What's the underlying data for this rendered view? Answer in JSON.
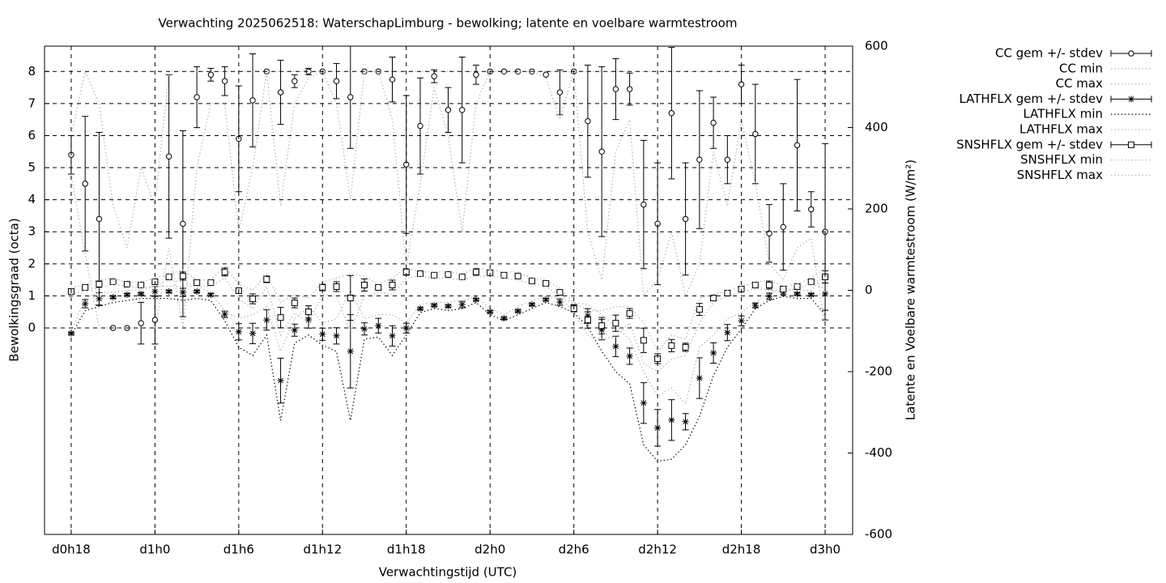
{
  "chart_data": {
    "type": "errorbar_line",
    "title": "Verwachting 2025062518: WaterschapLimburg - bewolking; latente en voelbare warmtestroom",
    "x_label": "Verwachtingstijd (UTC)",
    "y_label": "Bewolkingsgraad (octa)",
    "y2_label": "Latente en Voelbare warmtestroom (W/m²)",
    "x": [
      18,
      19,
      20,
      21,
      22,
      23,
      24,
      25,
      26,
      27,
      28,
      29,
      30,
      31,
      32,
      33,
      34,
      35,
      36,
      37,
      38,
      39,
      40,
      41,
      42,
      43,
      44,
      45,
      46,
      47,
      48,
      49,
      50,
      51,
      52,
      53,
      54,
      55,
      56,
      57,
      58,
      59,
      60,
      61,
      62,
      63,
      64,
      65,
      66,
      67,
      68,
      69,
      70,
      71,
      72
    ],
    "xlim": [
      16.09,
      73.97
    ],
    "xticks": [
      {
        "value": 18,
        "label": "d0h18"
      },
      {
        "value": 24,
        "label": "d1h0"
      },
      {
        "value": 30,
        "label": "d1h6"
      },
      {
        "value": 36,
        "label": "d1h12"
      },
      {
        "value": 42,
        "label": "d1h18"
      },
      {
        "value": 48,
        "label": "d2h0"
      },
      {
        "value": 54,
        "label": "d2h6"
      },
      {
        "value": 60,
        "label": "d2h12"
      },
      {
        "value": 66,
        "label": "d2h18"
      },
      {
        "value": 72,
        "label": "d3h0"
      }
    ],
    "ylim": [
      -6.44,
      8.79
    ],
    "yticks": [
      0,
      1,
      2,
      3,
      4,
      5,
      6,
      7,
      8
    ],
    "y2lim": [
      -600,
      600
    ],
    "y2ticks": [
      -600,
      -400,
      -200,
      0,
      200,
      400,
      600
    ],
    "grid": true,
    "legend": "outside-right",
    "series": [
      {
        "name": "CC gem +/- stdev",
        "color": "#000000",
        "marker": "circle",
        "style": "errorbars",
        "values": [
          5.4,
          4.5,
          3.4,
          0,
          0,
          0.15,
          0.25,
          5.35,
          3.25,
          7.2,
          7.9,
          7.7,
          5.9,
          7.1,
          8,
          7.35,
          7.7,
          8,
          8,
          7.7,
          7.2,
          8,
          8,
          7.75,
          5.1,
          6.3,
          7.85,
          6.8,
          6.8,
          7.9,
          8,
          8,
          8,
          8,
          7.9,
          7.35,
          8,
          6.45,
          5.5,
          7.45,
          7.45,
          3.85,
          3.25,
          6.7,
          3.4,
          5.25,
          6.4,
          5.25,
          7.6,
          6.05,
          2.95,
          3.15,
          5.7,
          3.7,
          3
        ],
        "errors": [
          0.6,
          2.1,
          2.7,
          0,
          0,
          0.65,
          0.75,
          2.55,
          2.9,
          0.95,
          0.2,
          0.45,
          1.65,
          1.45,
          0,
          1,
          0.2,
          0.1,
          0,
          0.55,
          1.6,
          0,
          0,
          0.7,
          2.15,
          1.5,
          0.2,
          0.7,
          1.65,
          0.3,
          0,
          0,
          0,
          0,
          0,
          0.7,
          0,
          1.75,
          2.65,
          0.95,
          0.5,
          2,
          1.9,
          2.05,
          1.75,
          2.15,
          0.8,
          0.75,
          0.6,
          1.55,
          0.9,
          1.35,
          2.05,
          0.55,
          2.75
        ]
      },
      {
        "name": "CC min",
        "color": "#b0b0b0",
        "style": "dotted",
        "values": [
          4.8,
          2.3,
          0,
          0,
          0,
          0,
          0,
          2.5,
          0,
          5,
          7,
          7,
          3,
          5,
          8,
          3.8,
          7,
          7.8,
          8,
          7,
          4,
          8,
          8,
          6.5,
          1.9,
          4.5,
          7.5,
          6,
          3,
          7,
          8,
          8,
          8,
          8,
          7.8,
          6.5,
          8,
          3,
          1.5,
          5.5,
          6.5,
          1,
          1.5,
          3,
          1,
          2,
          5.5,
          3.8,
          6.5,
          4.5,
          2,
          1.5,
          2.5,
          2.8,
          0
        ]
      },
      {
        "name": "CC max",
        "color": "#b0b0b0",
        "style": "dotted",
        "values": [
          6,
          8,
          7,
          3.8,
          2.5,
          5,
          3.8,
          8,
          8,
          8,
          8,
          8,
          8,
          8,
          8,
          8,
          8,
          8,
          8,
          8,
          8,
          8,
          8,
          8,
          8,
          8,
          8,
          8,
          8,
          8,
          8,
          8,
          8,
          8,
          8,
          8,
          8,
          8,
          8,
          8,
          8,
          8,
          8,
          8,
          8,
          8,
          8,
          8,
          8,
          8,
          8,
          8,
          8,
          8,
          8
        ]
      },
      {
        "name": "LATHFLX gem +/- stdev",
        "color": "#000000",
        "marker": "star",
        "style": "errorbars",
        "axis": "y2",
        "values": [
          -106,
          -33,
          -21,
          -17,
          -11,
          -9,
          -3,
          -3,
          -5,
          -3,
          -11,
          -59,
          -102,
          -106,
          -73,
          -222,
          -98,
          -73,
          -108,
          -112,
          -150,
          -95,
          -87,
          -112,
          -93,
          -45,
          -37,
          -39,
          -35,
          -23,
          -53,
          -69,
          -51,
          -35,
          -23,
          -29,
          -43,
          -63,
          -97,
          -138,
          -162,
          -277,
          -338,
          -319,
          -323,
          -216,
          -154,
          -104,
          -75,
          -37,
          -15,
          -5,
          -9,
          -11,
          -9
        ],
        "errors": [
          3,
          10,
          15,
          3,
          3,
          3,
          12,
          3,
          10,
          3,
          3,
          8,
          20,
          25,
          25,
          55,
          15,
          20,
          15,
          20,
          90,
          15,
          18,
          25,
          12,
          3,
          3,
          3,
          8,
          3,
          3,
          3,
          3,
          3,
          3,
          8,
          8,
          18,
          25,
          25,
          20,
          50,
          45,
          50,
          20,
          50,
          25,
          20,
          12,
          6,
          8,
          6,
          3,
          3,
          40
        ]
      },
      {
        "name": "LATHFLX min",
        "color": "#000000",
        "style": "dotted",
        "axis": "y2",
        "values": [
          -110,
          -50,
          -40,
          -30,
          -25,
          -20,
          -20,
          -20,
          -25,
          -20,
          -25,
          -75,
          -140,
          -160,
          -110,
          -320,
          -130,
          -110,
          -135,
          -150,
          -320,
          -120,
          -115,
          -160,
          -110,
          -55,
          -45,
          -50,
          -45,
          -30,
          -60,
          -75,
          -60,
          -45,
          -30,
          -40,
          -55,
          -90,
          -150,
          -200,
          -230,
          -380,
          -420,
          -415,
          -380,
          -310,
          -210,
          -140,
          -95,
          -45,
          -25,
          -15,
          -20,
          -20,
          -60
        ]
      },
      {
        "name": "LATHFLX max",
        "color": "#b0b0b0",
        "style": "dotted",
        "axis": "y2",
        "values": [
          -100,
          -20,
          -5,
          -5,
          0,
          0,
          10,
          10,
          10,
          10,
          -5,
          -50,
          -70,
          -60,
          -40,
          -150,
          -70,
          -40,
          -80,
          -70,
          0,
          -70,
          -60,
          -60,
          -80,
          -35,
          -30,
          -30,
          -25,
          -15,
          -45,
          -60,
          -40,
          -25,
          -15,
          -20,
          -30,
          -35,
          -60,
          -90,
          -120,
          -200,
          -260,
          -240,
          -280,
          -140,
          -110,
          -70,
          -55,
          -30,
          -5,
          5,
          0,
          0,
          40
        ]
      },
      {
        "name": "SNSHFLX gem +/- stdev",
        "color": "#000000",
        "marker": "square",
        "style": "errorbars",
        "axis": "y2",
        "values": [
          -3,
          7,
          15,
          21,
          15,
          13,
          21,
          33,
          35,
          19,
          19,
          45,
          -1,
          -21,
          27,
          -67,
          -31,
          -53,
          7,
          9,
          -19,
          13,
          7,
          13,
          45,
          41,
          37,
          39,
          33,
          45,
          43,
          37,
          35,
          23,
          17,
          -5,
          -45,
          -73,
          -87,
          -81,
          -57,
          -123,
          -168,
          -136,
          -140,
          -47,
          -19,
          -7,
          3,
          13,
          13,
          3,
          9,
          21,
          33
        ],
        "errors": [
          5,
          3,
          8,
          3,
          3,
          3,
          3,
          3,
          10,
          3,
          3,
          10,
          3,
          12,
          8,
          25,
          12,
          15,
          8,
          12,
          55,
          15,
          3,
          12,
          8,
          3,
          3,
          3,
          3,
          8,
          6,
          3,
          3,
          3,
          3,
          3,
          8,
          20,
          20,
          20,
          12,
          30,
          12,
          15,
          10,
          15,
          5,
          5,
          3,
          6,
          10,
          6,
          3,
          3,
          15
        ]
      },
      {
        "name": "SNSHFLX min",
        "color": "#b0b0b0",
        "style": "dotted",
        "axis": "y2",
        "values": [
          -10,
          0,
          5,
          15,
          10,
          5,
          10,
          25,
          20,
          10,
          10,
          30,
          -20,
          -45,
          10,
          -110,
          -55,
          -80,
          -10,
          -15,
          -100,
          -15,
          -5,
          -10,
          30,
          35,
          30,
          30,
          25,
          35,
          35,
          30,
          25,
          15,
          10,
          -15,
          -55,
          -110,
          -120,
          -115,
          -80,
          -180,
          -200,
          -170,
          -160,
          -80,
          -30,
          -15,
          -5,
          5,
          0,
          -5,
          5,
          15,
          5
        ]
      },
      {
        "name": "SNSHFLX max",
        "color": "#b0b0b0",
        "style": "dotted",
        "axis": "y2",
        "values": [
          5,
          15,
          25,
          30,
          20,
          20,
          30,
          40,
          50,
          25,
          25,
          60,
          15,
          0,
          40,
          -30,
          -10,
          -20,
          20,
          30,
          40,
          35,
          15,
          30,
          55,
          45,
          45,
          45,
          40,
          55,
          50,
          45,
          45,
          30,
          25,
          5,
          -30,
          -50,
          -50,
          -40,
          -40,
          -80,
          -150,
          -110,
          -120,
          -20,
          -10,
          0,
          10,
          20,
          25,
          10,
          15,
          30,
          55
        ]
      }
    ]
  }
}
